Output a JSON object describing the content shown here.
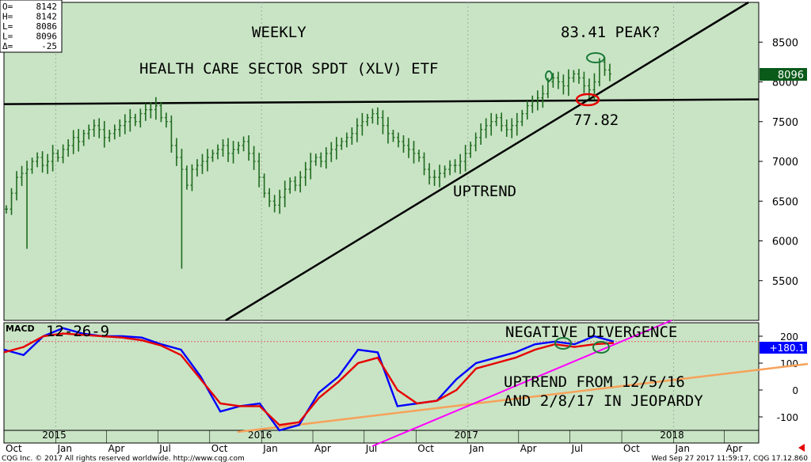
{
  "colors": {
    "plot_bg": "#c9e4c5",
    "price_bar": "#1f6a1f",
    "macd_line": "#0000ff",
    "signal_line": "#e60000",
    "trend_magenta": "#ff00ff",
    "trend_orange": "#f7a15a",
    "circle_green": "#1a7a3a",
    "circle_red": "#e60000",
    "last_price_bg": "#0a5a1a",
    "last_macd_bg": "#0000ff"
  },
  "ohlc_box": [
    {
      "label": "O=",
      "value": "8142"
    },
    {
      "label": "H=",
      "value": "8142"
    },
    {
      "label": "L=",
      "value": "8086"
    },
    {
      "label": "L=",
      "value": "8096"
    },
    {
      "label": "Δ=",
      "value": "-25"
    }
  ],
  "annotations": {
    "weekly": "WEEKLY",
    "title": "HEALTH CARE SECTOR SPDT (XLV) ETF",
    "peak": "83.41 PEAK?",
    "level": "77.82",
    "uptrend": "UPTREND",
    "macd_params": "12-26-9",
    "neg_div": "NEGATIVE DIVERGENCE",
    "uptrend_line1": "UPTREND FROM 12/5/16",
    "uptrend_line2": "AND 2/8/17 IN JEOPARDY"
  },
  "macd_label": "MACD",
  "last_price_tag": "8096",
  "last_macd_tag": "+180.1",
  "footer_left": "CQG Inc. © 2017 All rights reserved worldwide. http://www.cqg.com",
  "footer_right": "Wed Sep 27 2017 11:59:17, CQG 17.12.860",
  "chart_data": [
    {
      "type": "ohlc",
      "name": "price",
      "period": "weekly",
      "x_ticks": [
        "Oct",
        "2015",
        "Jan",
        "Apr",
        "Jul",
        "Oct",
        "2016",
        "Jan",
        "Apr",
        "Jul",
        "Oct",
        "2017",
        "Jan",
        "Apr",
        "Jul",
        "Oct",
        "2018",
        "Jan",
        "Apr"
      ],
      "y_ticks": [
        8500,
        8000,
        7500,
        7000,
        6500,
        6000,
        5500
      ],
      "ylim": [
        5000,
        9000
      ],
      "x_range": [
        "2014-10",
        "2018-06"
      ],
      "horizontal_line": 7750,
      "weekly_close_approx": [
        6400,
        6600,
        6800,
        6850,
        6900,
        7000,
        7050,
        6950,
        7000,
        7100,
        7050,
        7150,
        7200,
        7300,
        7250,
        7350,
        7400,
        7450,
        7400,
        7300,
        7350,
        7400,
        7450,
        7500,
        7550,
        7500,
        7600,
        7650,
        7650,
        7700,
        7550,
        7500,
        7200,
        7050,
        6900,
        6700,
        6900,
        6950,
        7000,
        7050,
        7100,
        7150,
        7200,
        7100,
        7150,
        7200,
        7250,
        7100,
        7000,
        6800,
        6600,
        6500,
        6450,
        6550,
        6650,
        6750,
        6700,
        6800,
        6900,
        7000,
        7050,
        7000,
        7100,
        7150,
        7200,
        7250,
        7300,
        7350,
        7450,
        7500,
        7550,
        7600,
        7550,
        7450,
        7350,
        7300,
        7250,
        7200,
        7150,
        7100,
        7050,
        6900,
        6800,
        6800,
        6850,
        6900,
        6950,
        6950,
        7000,
        7100,
        7200,
        7300,
        7400,
        7450,
        7500,
        7550,
        7450,
        7400,
        7450,
        7500,
        7600,
        7700,
        7750,
        7800,
        7850,
        8000,
        8050,
        8000,
        7950,
        8050,
        8100,
        8050,
        7950,
        7900,
        8000,
        8250,
        8150,
        8100
      ]
    },
    {
      "type": "line",
      "name": "MACD 12-26-9",
      "y_ticks": [
        200,
        100,
        0,
        -100
      ],
      "ylim": [
        -150,
        250
      ],
      "reference_line": 180,
      "series": [
        {
          "name": "MACD",
          "values": [
            150,
            130,
            200,
            230,
            210,
            200,
            200,
            195,
            170,
            150,
            50,
            -80,
            -60,
            -50,
            -150,
            -130,
            -10,
            50,
            150,
            140,
            -60,
            -50,
            -40,
            40,
            100,
            120,
            140,
            170,
            180,
            170,
            200,
            180
          ]
        },
        {
          "name": "Signal",
          "values": [
            140,
            160,
            200,
            210,
            205,
            200,
            195,
            185,
            165,
            130,
            40,
            -50,
            -60,
            -60,
            -130,
            -120,
            -30,
            30,
            100,
            120,
            0,
            -50,
            -40,
            0,
            80,
            100,
            120,
            150,
            170,
            160,
            170,
            175
          ]
        }
      ]
    }
  ]
}
